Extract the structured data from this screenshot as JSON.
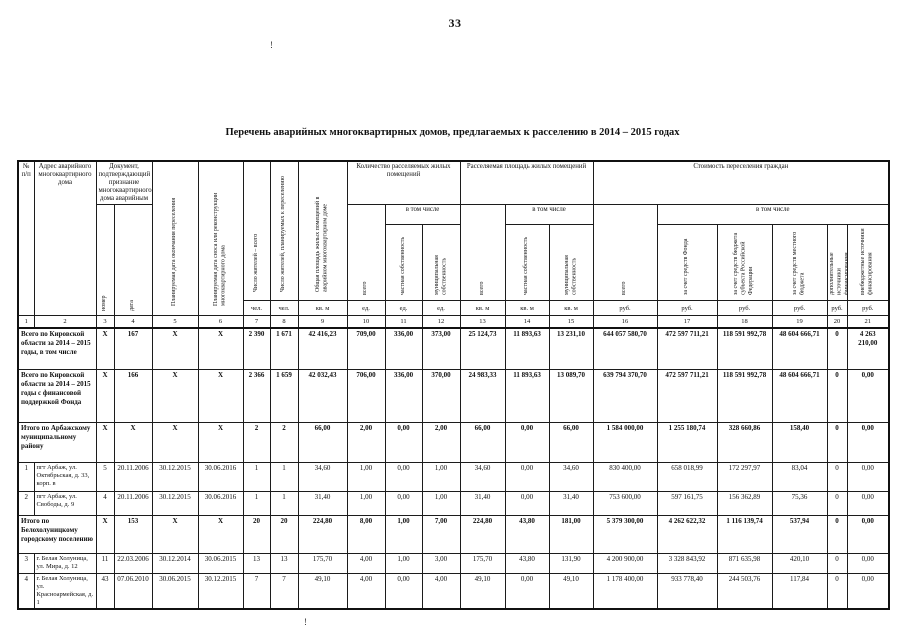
{
  "page": {
    "number": "33",
    "title": "Перечень аварийных многоквартирных домов, предлагаемых к расселению в 2014 – 2015 годах",
    "artifact_mark": "!"
  },
  "table": {
    "header": {
      "col1": "№ п/п",
      "col2": "Адрес аварийного многоквартирного дома",
      "doc_group": "Документ, подтверждающий признание многоквартирного дома аварийным",
      "doc_number": "номер",
      "doc_date": "дата",
      "col5": "Планируемая дата окончания переселения",
      "col6": "Планируемая дата сноса или реконструкции многоквартирного дома",
      "col7": "Число жителей – всего",
      "col8": "Число жителей, планируемых к переселению",
      "col9": "Общая площадь жилых помещений в аварийном многоквартирном доме",
      "count_group": "Количество расселяемых жилых помещений",
      "area_group": "Расселяемая площадь жилых помещений",
      "cost_group": "Стоимость переселения граждан",
      "including": "в том числе",
      "total": "всего",
      "private_own": "частная собственность",
      "municipal_own": "муниципальная собственность",
      "fund": "за счет средств Фонда",
      "subject_budget": "за счет средств бюджета субъекта Российской Федерации",
      "local_budget": "за счет средств местного бюджета",
      "additional_sources": "дополнительные источники финансирования",
      "extrabudget_sources": "внебюджетные источники финансирования",
      "units": [
        "чел.",
        "чел.",
        "кв. м",
        "ед.",
        "ед.",
        "ед.",
        "кв. м",
        "кв. м",
        "кв. м",
        "руб.",
        "руб.",
        "руб.",
        "руб.",
        "руб.",
        "руб."
      ],
      "col_numbers": [
        "1",
        "2",
        "3",
        "4",
        "5",
        "6",
        "7",
        "8",
        "9",
        "10",
        "11",
        "12",
        "13",
        "14",
        "15",
        "16",
        "17",
        "18",
        "19",
        "20",
        "21"
      ]
    },
    "rows": [
      {
        "type": "summary",
        "num": "",
        "address": "Всего по Кировской области за 2014 – 2015 годы, в том числе",
        "values": [
          "X",
          "167",
          "X",
          "X",
          "2 390",
          "1 671",
          "42 416,23",
          "709,00",
          "336,00",
          "373,00",
          "25 124,73",
          "11 893,63",
          "13 231,10",
          "644 057 580,70",
          "472 597 711,21",
          "118 591 992,78",
          "48 604 666,71",
          "0",
          "4 263 210,00"
        ]
      },
      {
        "type": "summary",
        "num": "",
        "address": "Всего по Кировской области за 2014 – 2015 годы с финансовой поддержкой Фонда",
        "values": [
          "X",
          "166",
          "X",
          "X",
          "2 366",
          "1 659",
          "42 032,43",
          "706,00",
          "336,00",
          "370,00",
          "24 983,33",
          "11 893,63",
          "13 089,70",
          "639 794 370,70",
          "472 597 711,21",
          "118 591 992,78",
          "48 604 666,71",
          "0",
          "0,00"
        ]
      },
      {
        "type": "summary",
        "num": "",
        "address": "Итого по Арбажскому муниципальному району",
        "values": [
          "X",
          "X",
          "X",
          "X",
          "2",
          "2",
          "66,00",
          "2,00",
          "0,00",
          "2,00",
          "66,00",
          "0,00",
          "66,00",
          "1 584 000,00",
          "1 255 180,74",
          "328 660,86",
          "158,40",
          "0",
          "0,00"
        ]
      },
      {
        "type": "item",
        "num": "1",
        "address": "пгт Арбаж, ул. Октябрьская, д. 33, корп. в",
        "values": [
          "5",
          "20.11.2006",
          "30.12.2015",
          "30.06.2016",
          "1",
          "1",
          "34,60",
          "1,00",
          "0,00",
          "1,00",
          "34,60",
          "0,00",
          "34,60",
          "830 400,00",
          "658 018,99",
          "172 297,97",
          "83,04",
          "0",
          "0,00"
        ]
      },
      {
        "type": "item",
        "num": "2",
        "address": "пгт Арбаж, ул. Свободы, д. 9",
        "values": [
          "4",
          "20.11.2006",
          "30.12.2015",
          "30.06.2016",
          "1",
          "1",
          "31,40",
          "1,00",
          "0,00",
          "1,00",
          "31,40",
          "0,00",
          "31,40",
          "753 600,00",
          "597 161,75",
          "156 362,89",
          "75,36",
          "0",
          "0,00"
        ]
      },
      {
        "type": "summary",
        "num": "",
        "address": "Итого по Белохолуницкому городскому поселению",
        "values": [
          "X",
          "153",
          "X",
          "X",
          "20",
          "20",
          "224,80",
          "8,00",
          "1,00",
          "7,00",
          "224,80",
          "43,80",
          "181,00",
          "5 379 300,00",
          "4 262 622,32",
          "1 116 139,74",
          "537,94",
          "0",
          "0,00"
        ]
      },
      {
        "type": "item",
        "num": "3",
        "address": "г. Белая Холуница, ул. Мира, д. 12",
        "values": [
          "11",
          "22.03.2006",
          "30.12.2014",
          "30.06.2015",
          "13",
          "13",
          "175,70",
          "4,00",
          "1,00",
          "3,00",
          "175,70",
          "43,80",
          "131,90",
          "4 200 900,00",
          "3 328 843,92",
          "871 635,98",
          "420,10",
          "0",
          "0,00"
        ]
      },
      {
        "type": "item",
        "num": "4",
        "address": "г. Белая Холуница, ул. Красноармейская, д. 1",
        "values": [
          "43",
          "07.06.2010",
          "30.06.2015",
          "30.12.2015",
          "7",
          "7",
          "49,10",
          "4,00",
          "0,00",
          "4,00",
          "49,10",
          "0,00",
          "49,10",
          "1 178 400,00",
          "933 778,40",
          "244 503,76",
          "117,84",
          "0",
          "0,00"
        ]
      }
    ]
  }
}
